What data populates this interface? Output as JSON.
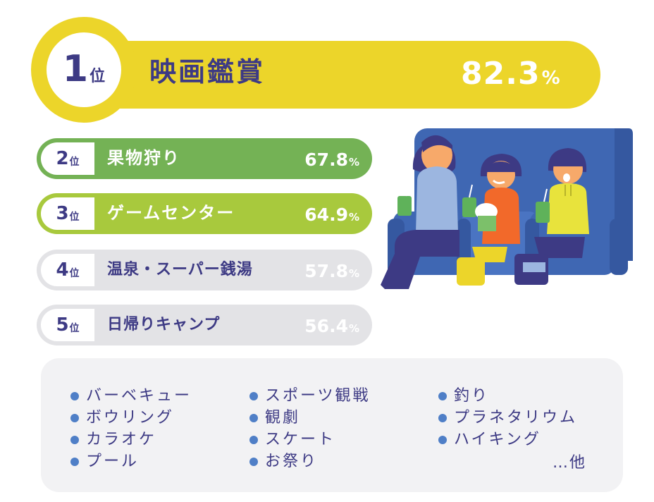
{
  "ranking": [
    {
      "rank": "1",
      "suffix": "位",
      "label": "映画鑑賞",
      "value": "82.3",
      "unit": "%",
      "color": "#ecd52a"
    },
    {
      "rank": "2",
      "suffix": "位",
      "label": "果物狩り",
      "value": "67.8",
      "unit": "%",
      "color": "#74b255"
    },
    {
      "rank": "3",
      "suffix": "位",
      "label": "ゲームセンター",
      "value": "64.9",
      "unit": "%",
      "color": "#a8c93d"
    },
    {
      "rank": "4",
      "suffix": "位",
      "label": "温泉・スーパー銭湯",
      "value": "57.8",
      "unit": "%",
      "color": "#e3e3e6"
    },
    {
      "rank": "5",
      "suffix": "位",
      "label": "日帰りキャンプ",
      "value": "56.4",
      "unit": "%",
      "color": "#e3e3e6"
    }
  ],
  "others": {
    "columns": [
      [
        "バーベキュー",
        "ボウリング",
        "カラオケ",
        "プール"
      ],
      [
        "スポーツ観戦",
        "観劇",
        "スケート",
        "お祭り"
      ],
      [
        "釣り",
        "プラネタリウム",
        "ハイキング"
      ]
    ],
    "more": "…他"
  },
  "colors": {
    "text": "#3d3a84",
    "bullet": "#4f7fc7",
    "panel": "#f2f2f4"
  },
  "illustration": "family-watching-movie-in-theater-seats"
}
